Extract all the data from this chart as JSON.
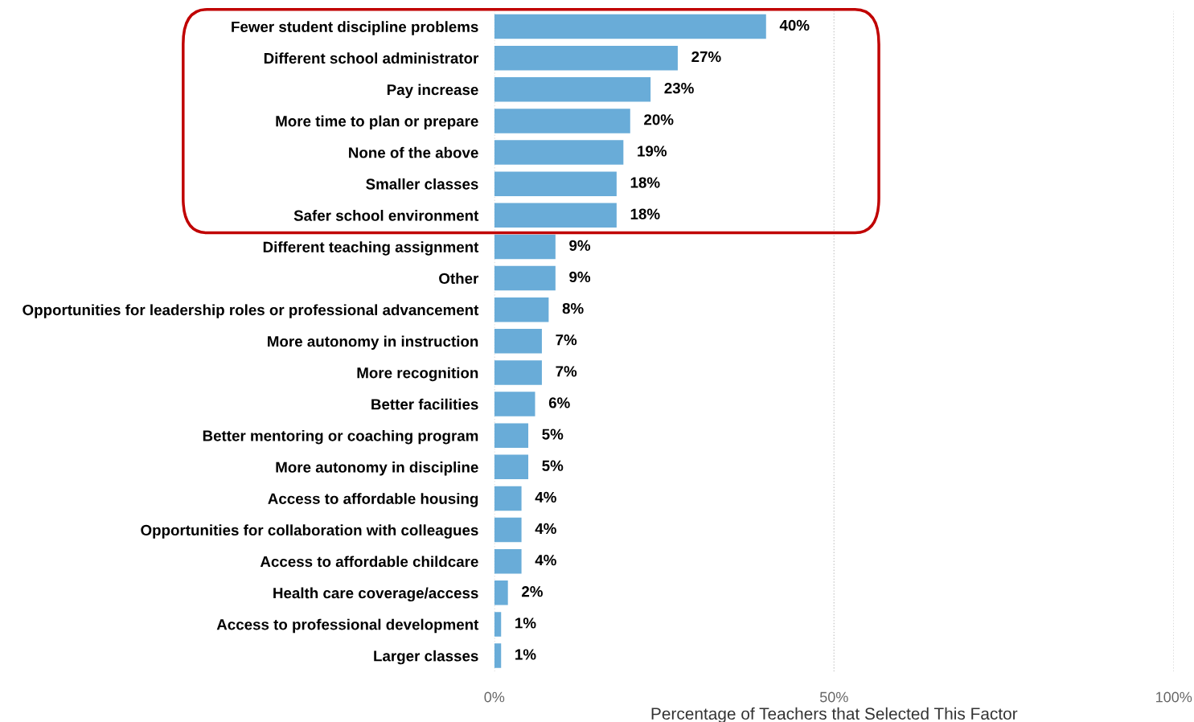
{
  "chart_data": {
    "type": "bar",
    "orientation": "horizontal",
    "xlabel": "Percentage of Teachers that Selected This Factor",
    "categories": [
      "Fewer student discipline problems",
      "Different school administrator",
      "Pay increase",
      "More time to plan or prepare",
      "None of the above",
      "Smaller classes",
      "Safer school environment",
      "Different teaching assignment",
      "Other",
      "Opportunities for leadership roles or professional advancement",
      "More autonomy in instruction",
      "More recognition",
      "Better facilities",
      "Better mentoring or coaching program",
      "More autonomy in discipline",
      "Access to affordable housing",
      "Opportunities for collaboration with colleagues",
      "Access to affordable childcare",
      "Health care coverage/access",
      "Access to professional development",
      "Larger classes"
    ],
    "values": [
      40,
      27,
      23,
      20,
      19,
      18,
      18,
      9,
      9,
      8,
      7,
      7,
      6,
      5,
      5,
      4,
      4,
      4,
      2,
      1,
      1
    ],
    "value_labels": [
      "40%",
      "27%",
      "23%",
      "20%",
      "19%",
      "18%",
      "18%",
      "9%",
      "9%",
      "8%",
      "7%",
      "7%",
      "6%",
      "5%",
      "5%",
      "4%",
      "4%",
      "4%",
      "2%",
      "1%",
      "1%"
    ],
    "color": "#69acd8",
    "xlim": [
      0,
      100
    ],
    "xticks": [
      {
        "value": 0,
        "label": "0%"
      },
      {
        "value": 50,
        "label": "50%"
      },
      {
        "value": 100,
        "label": "100%"
      }
    ],
    "grid": "x"
  }
}
